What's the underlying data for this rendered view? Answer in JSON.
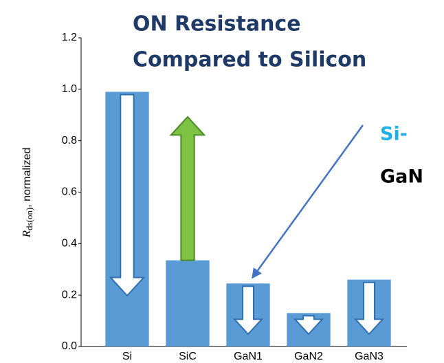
{
  "chart_data": {
    "type": "bar",
    "title": [
      "ON Resistance",
      "Compared to Silicon"
    ],
    "y_label": {
      "symbol": "R",
      "subscript": "ds(on)",
      "text": ", normalized"
    },
    "annotation": [
      "Si-",
      "GaN"
    ],
    "annotation_colors": [
      "#1cb0e6",
      "#000000"
    ],
    "categories": [
      "Si",
      "SiC",
      "GaN1",
      "GaN2",
      "GaN3"
    ],
    "values": [
      0.99,
      0.335,
      0.245,
      0.13,
      0.26
    ],
    "color": "#5b9bd5",
    "ylim": [
      0,
      1.2
    ],
    "yticks": [
      {
        "value": 0,
        "label": "0.0"
      },
      0.2,
      0.4,
      0.6,
      0.8,
      {
        "value": 1,
        "label": "1.0"
      },
      1.2
    ]
  }
}
